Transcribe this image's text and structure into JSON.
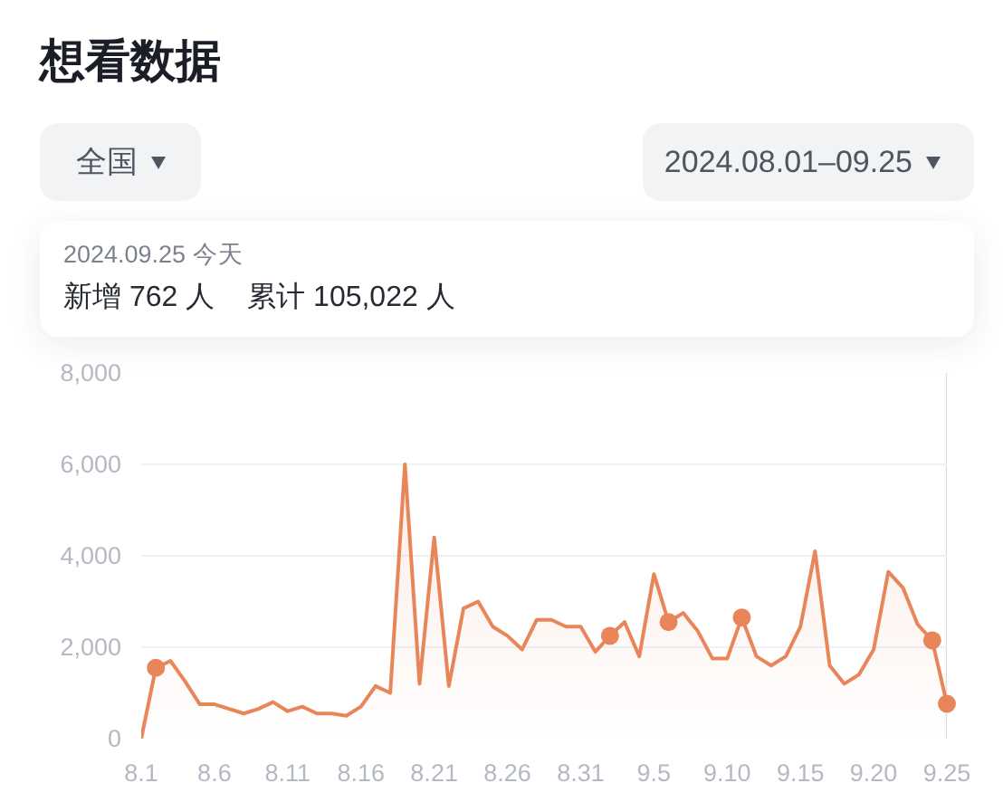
{
  "chart_data": {
    "type": "area",
    "title": "想看数据",
    "annotations": [
      "全国",
      "2024.08.01–09.25",
      "2024.09.25 今天",
      "新增 762 人",
      "累计 105,022 人"
    ],
    "x": [
      "2024-08-01",
      "2024-08-02",
      "2024-08-03",
      "2024-08-04",
      "2024-08-05",
      "2024-08-06",
      "2024-08-07",
      "2024-08-08",
      "2024-08-09",
      "2024-08-10",
      "2024-08-11",
      "2024-08-12",
      "2024-08-13",
      "2024-08-14",
      "2024-08-15",
      "2024-08-16",
      "2024-08-17",
      "2024-08-18",
      "2024-08-19",
      "2024-08-20",
      "2024-08-21",
      "2024-08-22",
      "2024-08-23",
      "2024-08-24",
      "2024-08-25",
      "2024-08-26",
      "2024-08-27",
      "2024-08-28",
      "2024-08-29",
      "2024-08-30",
      "2024-08-31",
      "2024-09-01",
      "2024-09-02",
      "2024-09-03",
      "2024-09-04",
      "2024-09-05",
      "2024-09-06",
      "2024-09-07",
      "2024-09-08",
      "2024-09-09",
      "2024-09-10",
      "2024-09-11",
      "2024-09-12",
      "2024-09-13",
      "2024-09-14",
      "2024-09-15",
      "2024-09-16",
      "2024-09-17",
      "2024-09-18",
      "2024-09-19",
      "2024-09-20",
      "2024-09-21",
      "2024-09-22",
      "2024-09-23",
      "2024-09-24",
      "2024-09-25"
    ],
    "series": [
      {
        "color": "#e8865a",
        "values": [
          0,
          1550,
          1700,
          1250,
          750,
          750,
          650,
          550,
          650,
          800,
          600,
          700,
          550,
          550,
          500,
          700,
          1150,
          1000,
          6000,
          1200,
          4400,
          1150,
          2850,
          3000,
          2450,
          2250,
          1950,
          2600,
          2600,
          2450,
          2450,
          1900,
          2250,
          2550,
          1800,
          3600,
          2550,
          2750,
          2350,
          1750,
          1750,
          2650,
          1800,
          1600,
          1800,
          2450,
          4100,
          1600,
          1200,
          1400,
          1950,
          3650,
          3300,
          2500,
          2150,
          762
        ]
      },
      {
        "type": "scatter",
        "color": "#e8865a",
        "marker": "circle",
        "x": [
          "2024-08-02",
          "2024-09-02",
          "2024-09-06",
          "2024-09-11",
          "2024-09-24",
          "2024-09-25"
        ],
        "values": [
          1550,
          2250,
          2550,
          2650,
          2150,
          762
        ]
      }
    ],
    "xlim": [
      "2024-08-01",
      "2024-09-25"
    ],
    "xticks": [
      {
        "value": "2024-08-01",
        "label": "8.1"
      },
      {
        "value": "2024-08-06",
        "label": "8.6"
      },
      {
        "value": "2024-08-11",
        "label": "8.11"
      },
      {
        "value": "2024-08-16",
        "label": "8.16"
      },
      {
        "value": "2024-08-21",
        "label": "8.21"
      },
      {
        "value": "2024-08-26",
        "label": "8.26"
      },
      {
        "value": "2024-08-31",
        "label": "8.31"
      },
      {
        "value": "2024-09-05",
        "label": "9.5"
      },
      {
        "value": "2024-09-10",
        "label": "9.10"
      },
      {
        "value": "2024-09-15",
        "label": "9.15"
      },
      {
        "value": "2024-09-20",
        "label": "9.20"
      },
      {
        "value": "2024-09-25",
        "label": "9.25"
      }
    ],
    "ylim": [
      0,
      8000
    ],
    "yticks": [
      0,
      {
        "value": 2000,
        "label": "2,000"
      },
      {
        "value": 4000,
        "label": "4,000"
      },
      {
        "value": 6000,
        "label": "6,000"
      },
      {
        "value": 8000,
        "label": "8,000"
      }
    ],
    "grid": "y",
    "ref_lines": [
      {
        "axis": "x",
        "value": "2024-09-25",
        "color": "#d9dce3"
      }
    ]
  }
}
